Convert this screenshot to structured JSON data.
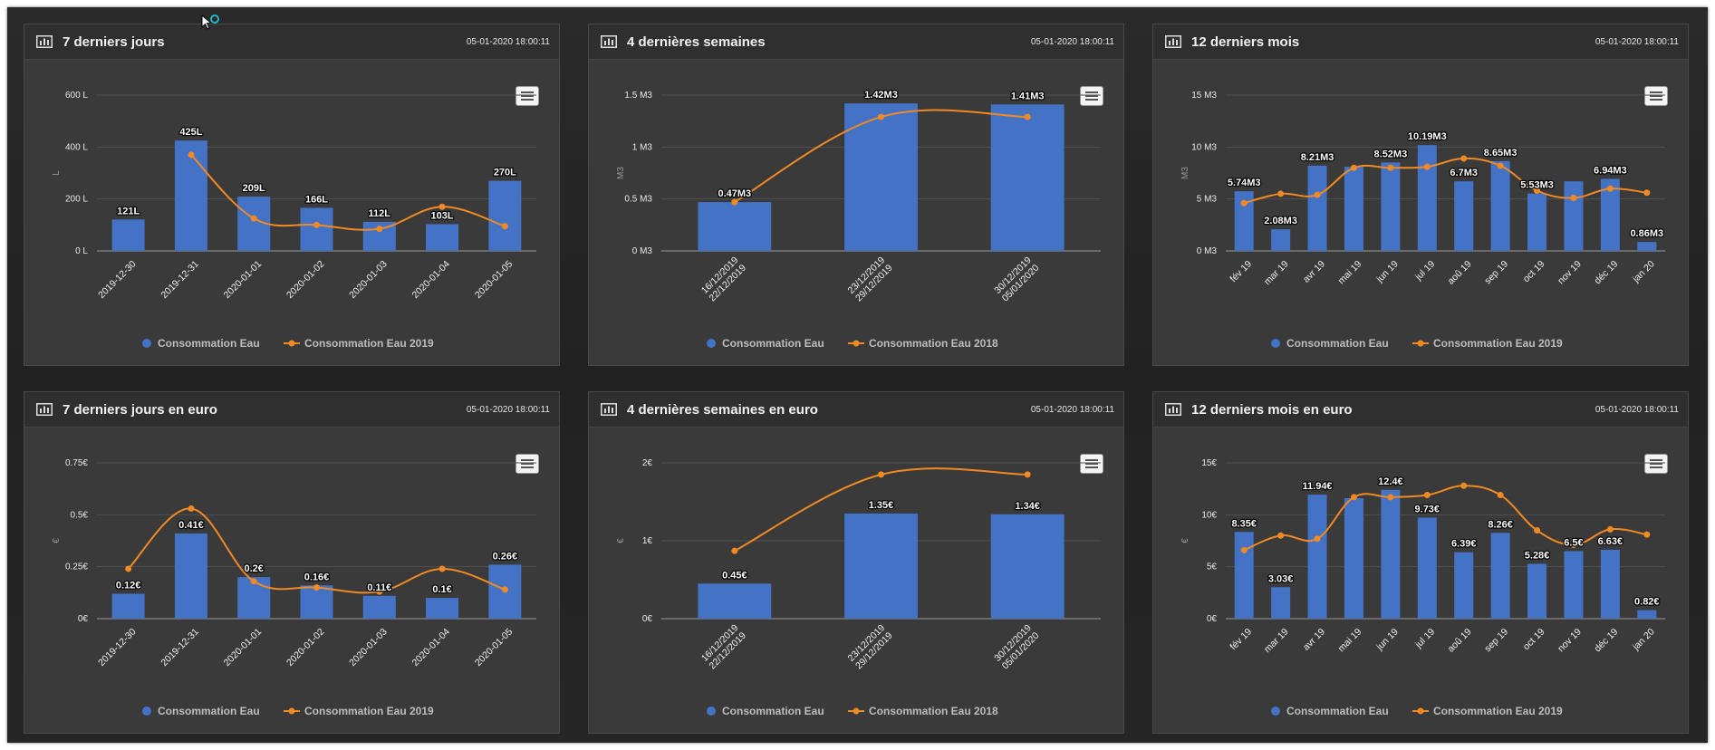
{
  "icons": {
    "panel": "bar-chart-icon",
    "menu": "hamburger-menu-icon"
  },
  "colors": {
    "bar": "#4472c4",
    "line": "#f28a24",
    "panel": "#3a3a3a"
  },
  "panels": [
    {
      "title": "7 derniers jours",
      "timestamp": "05-01-2020 18:00:11",
      "chart_data": {
        "type": "bar",
        "categories": [
          "2019-12-30",
          "2019-12-31",
          "2020-01-01",
          "2020-01-02",
          "2020-01-03",
          "2020-01-04",
          "2020-01-05"
        ],
        "series": [
          {
            "name": "Consommation Eau",
            "type": "bar",
            "values": [
              121,
              425,
              209,
              166,
              112,
              103,
              270
            ],
            "labels": [
              "121L",
              "425L",
              "209L",
              "166L",
              "112L",
              "103L",
              "270L"
            ]
          },
          {
            "name": "Consommation Eau 2019",
            "type": "line",
            "values": [
              null,
              370,
              125,
              100,
              85,
              170,
              95
            ]
          }
        ],
        "ylim": [
          0,
          600
        ],
        "yticks": [
          0,
          200,
          400,
          600
        ],
        "ytick_labels": [
          "0 L",
          "200 L",
          "400 L",
          "600 L"
        ],
        "ylabel": "L"
      }
    },
    {
      "title": "4 dernières semaines",
      "timestamp": "05-01-2020 18:00:11",
      "chart_data": {
        "type": "bar",
        "categories": [
          "16/12/2019\n22/12/2019",
          "23/12/2019\n29/12/2019",
          "30/12/2019\n05/01/2020"
        ],
        "series": [
          {
            "name": "Consommation Eau",
            "type": "bar",
            "values": [
              0.47,
              1.42,
              1.41
            ],
            "labels": [
              "0.47M3",
              "1.42M3",
              "1.41M3"
            ]
          },
          {
            "name": "Consommation Eau 2018",
            "type": "line",
            "values": [
              0.47,
              1.29,
              1.29
            ]
          }
        ],
        "ylim": [
          0,
          1.5
        ],
        "yticks": [
          0,
          0.5,
          1,
          1.5
        ],
        "ytick_labels": [
          "0 M3",
          "0.5 M3",
          "1 M3",
          "1.5 M3"
        ],
        "ylabel": "M3"
      }
    },
    {
      "title": "12 derniers mois",
      "timestamp": "05-01-2020 18:00:11",
      "chart_data": {
        "type": "bar",
        "categories": [
          "fév 19",
          "mar 19",
          "avr 19",
          "mai 19",
          "jun 19",
          "jul 19",
          "aoû 19",
          "sep 19",
          "oct 19",
          "nov 19",
          "déc 19",
          "jan 20"
        ],
        "series": [
          {
            "name": "Consommation Eau",
            "type": "bar",
            "values": [
              5.74,
              2.08,
              8.21,
              8.1,
              8.52,
              10.19,
              6.7,
              8.65,
              5.53,
              6.7,
              6.94,
              0.86
            ],
            "labels": [
              "5.74M3",
              "2.08M3",
              "8.21M3",
              "",
              "8.52M3",
              "10.19M3",
              "6.7M3",
              "8.65M3",
              "5.53M3",
              "",
              "6.94M3",
              "0.86M3"
            ]
          },
          {
            "name": "Consommation Eau 2019",
            "type": "line",
            "values": [
              4.6,
              5.5,
              5.4,
              8.0,
              8.0,
              8.1,
              8.9,
              8.2,
              5.8,
              5.1,
              6.0,
              5.6
            ]
          }
        ],
        "ylim": [
          0,
          15
        ],
        "yticks": [
          0,
          5,
          10,
          15
        ],
        "ytick_labels": [
          "0 M3",
          "5 M3",
          "10 M3",
          "15 M3"
        ],
        "ylabel": "M3"
      }
    },
    {
      "title": "7 derniers jours en euro",
      "timestamp": "05-01-2020 18:00:11",
      "chart_data": {
        "type": "bar",
        "categories": [
          "2019-12-30",
          "2019-12-31",
          "2020-01-01",
          "2020-01-02",
          "2020-01-03",
          "2020-01-04",
          "2020-01-05"
        ],
        "series": [
          {
            "name": "Consommation Eau",
            "type": "bar",
            "values": [
              0.12,
              0.41,
              0.2,
              0.16,
              0.11,
              0.1,
              0.26
            ],
            "labels": [
              "0.12€",
              "0.41€",
              "0.2€",
              "0.16€",
              "0.11€",
              "0.1€",
              "0.26€"
            ]
          },
          {
            "name": "Consommation Eau 2019",
            "type": "line",
            "values": [
              0.24,
              0.53,
              0.18,
              0.15,
              0.13,
              0.24,
              0.14
            ]
          }
        ],
        "ylim": [
          0,
          0.75
        ],
        "yticks": [
          0,
          0.25,
          0.5,
          0.75
        ],
        "ytick_labels": [
          "0€",
          "0.25€",
          "0.5€",
          "0.75€"
        ],
        "ylabel": "€"
      }
    },
    {
      "title": "4 dernières semaines en euro",
      "timestamp": "05-01-2020 18:00:11",
      "chart_data": {
        "type": "bar",
        "categories": [
          "16/12/2019\n22/12/2019",
          "23/12/2019\n29/12/2019",
          "30/12/2019\n05/01/2020"
        ],
        "series": [
          {
            "name": "Consommation Eau",
            "type": "bar",
            "values": [
              0.45,
              1.35,
              1.34
            ],
            "labels": [
              "0.45€",
              "1.35€",
              "1.34€"
            ]
          },
          {
            "name": "Consommation Eau 2018",
            "type": "line",
            "values": [
              0.87,
              1.85,
              1.85
            ]
          }
        ],
        "ylim": [
          0,
          2
        ],
        "yticks": [
          0,
          1,
          2
        ],
        "ytick_labels": [
          "0€",
          "1€",
          "2€"
        ],
        "ylabel": "€"
      }
    },
    {
      "title": "12 derniers mois en euro",
      "timestamp": "05-01-2020 18:00:11",
      "chart_data": {
        "type": "bar",
        "categories": [
          "fév 19",
          "mar 19",
          "avr 19",
          "mai 19",
          "jun 19",
          "jul 19",
          "aoû 19",
          "sep 19",
          "oct 19",
          "nov 19",
          "déc 19",
          "jan 20"
        ],
        "series": [
          {
            "name": "Consommation Eau",
            "type": "bar",
            "values": [
              8.35,
              3.03,
              11.94,
              11.6,
              12.4,
              9.73,
              6.39,
              8.26,
              5.28,
              6.5,
              6.63,
              0.82
            ],
            "labels": [
              "8.35€",
              "3.03€",
              "11.94€",
              "",
              "12.4€",
              "9.73€",
              "6.39€",
              "8.26€",
              "5.28€",
              "6.5€",
              "6.63€",
              "0.82€"
            ]
          },
          {
            "name": "Consommation Eau 2019",
            "type": "line",
            "values": [
              6.6,
              8.0,
              7.7,
              11.7,
              11.7,
              11.9,
              12.8,
              11.9,
              8.5,
              7.1,
              8.6,
              8.1
            ]
          }
        ],
        "ylim": [
          0,
          15
        ],
        "yticks": [
          0,
          5,
          10,
          15
        ],
        "ytick_labels": [
          "0€",
          "5€",
          "10€",
          "15€"
        ],
        "ylabel": "€"
      }
    }
  ]
}
